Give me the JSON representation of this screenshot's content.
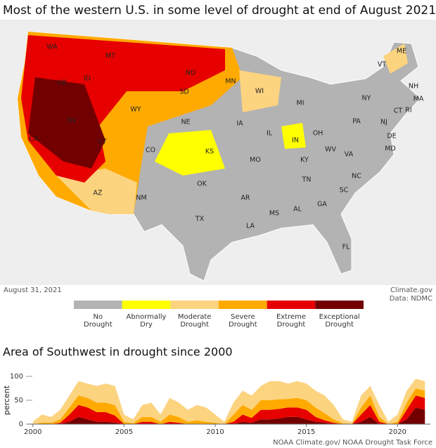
{
  "title": "Most of the western U.S. in some level of drought at end of August 2021",
  "map": {
    "states": [
      "WA",
      "MT",
      "ID",
      "OR",
      "ND",
      "MN",
      "WI",
      "MI",
      "SD",
      "WY",
      "NV",
      "NE",
      "IA",
      "IL",
      "IN",
      "OH",
      "PA",
      "NY",
      "VT",
      "ME",
      "NH",
      "MA",
      "CT",
      "RI",
      "NJ",
      "DE",
      "MD",
      "UT",
      "CO",
      "KS",
      "MO",
      "KY",
      "WV",
      "VA",
      "NC",
      "TN",
      "SC",
      "CA",
      "AZ",
      "NM",
      "OK",
      "AR",
      "MS",
      "AL",
      "GA",
      "TX",
      "LA",
      "FL"
    ],
    "date": "August 31, 2021",
    "source": "Climate.gov",
    "data_credit": "Data: NDMC",
    "legend": [
      {
        "label": [
          "No",
          "Drought"
        ],
        "color": "#b3b3b3"
      },
      {
        "label": [
          "Abnormally",
          "Dry"
        ],
        "color": "#ffff00"
      },
      {
        "label": [
          "Moderate",
          "Drought"
        ],
        "color": "#fcd37f"
      },
      {
        "label": [
          "Severe",
          "Drought"
        ],
        "color": "#ffaa00"
      },
      {
        "label": [
          "Extreme",
          "Drought"
        ],
        "color": "#e60000"
      },
      {
        "label": [
          "Exceptional",
          "Drought"
        ],
        "color": "#730000"
      }
    ]
  },
  "chart_data": {
    "type": "area",
    "title": "Area of Southwest in drought since 2000",
    "ylabel": "percent",
    "stacked": true,
    "x": [
      2000,
      2000.5,
      2001,
      2001.5,
      2002,
      2002.5,
      2003,
      2003.5,
      2004,
      2004.5,
      2005,
      2005.5,
      2006,
      2006.5,
      2007,
      2007.5,
      2008,
      2008.5,
      2009,
      2009.5,
      2010,
      2010.5,
      2011,
      2011.5,
      2012,
      2012.5,
      2013,
      2013.5,
      2014,
      2014.5,
      2015,
      2015.5,
      2016,
      2016.5,
      2017,
      2017.5,
      2018,
      2018.5,
      2019,
      2019.5,
      2020,
      2020.5,
      2021,
      2021.5
    ],
    "xlim": [
      1999.7,
      2021.8
    ],
    "xticks": [
      2000,
      2005,
      2010,
      2015,
      2020
    ],
    "ylim": [
      0,
      100
    ],
    "yticks": [
      0,
      50,
      100
    ],
    "series": [
      {
        "color": "#730000",
        "values": [
          0,
          0,
          0,
          0,
          5,
          15,
          10,
          5,
          5,
          3,
          0,
          0,
          0,
          0,
          0,
          0,
          0,
          0,
          0,
          0,
          0,
          0,
          0,
          5,
          3,
          10,
          10,
          12,
          15,
          15,
          10,
          5,
          3,
          0,
          0,
          0,
          5,
          15,
          0,
          0,
          0,
          10,
          35,
          30
        ]
      },
      {
        "color": "#e60000",
        "values": [
          0,
          0,
          0,
          3,
          15,
          25,
          25,
          20,
          20,
          15,
          0,
          0,
          5,
          5,
          0,
          5,
          3,
          0,
          0,
          0,
          0,
          0,
          5,
          15,
          10,
          20,
          20,
          20,
          20,
          20,
          20,
          10,
          5,
          3,
          0,
          0,
          15,
          25,
          5,
          0,
          0,
          20,
          25,
          25
        ]
      },
      {
        "color": "#ffaa00",
        "values": [
          0,
          3,
          3,
          7,
          15,
          20,
          20,
          20,
          20,
          22,
          5,
          2,
          10,
          10,
          5,
          15,
          12,
          5,
          8,
          5,
          3,
          0,
          15,
          20,
          17,
          20,
          20,
          20,
          18,
          20,
          20,
          20,
          15,
          7,
          2,
          0,
          15,
          20,
          10,
          0,
          5,
          15,
          15,
          15
        ]
      },
      {
        "color": "#fcd37f",
        "values": [
          5,
          17,
          12,
          20,
          25,
          30,
          30,
          35,
          40,
          40,
          15,
          8,
          25,
          30,
          15,
          35,
          30,
          25,
          32,
          30,
          17,
          5,
          25,
          30,
          30,
          30,
          40,
          38,
          32,
          35,
          35,
          35,
          37,
          30,
          8,
          5,
          25,
          20,
          25,
          5,
          15,
          25,
          20,
          20
        ]
      }
    ],
    "credit": "NOAA Climate.gov/ NOAA Drought Task Force"
  }
}
